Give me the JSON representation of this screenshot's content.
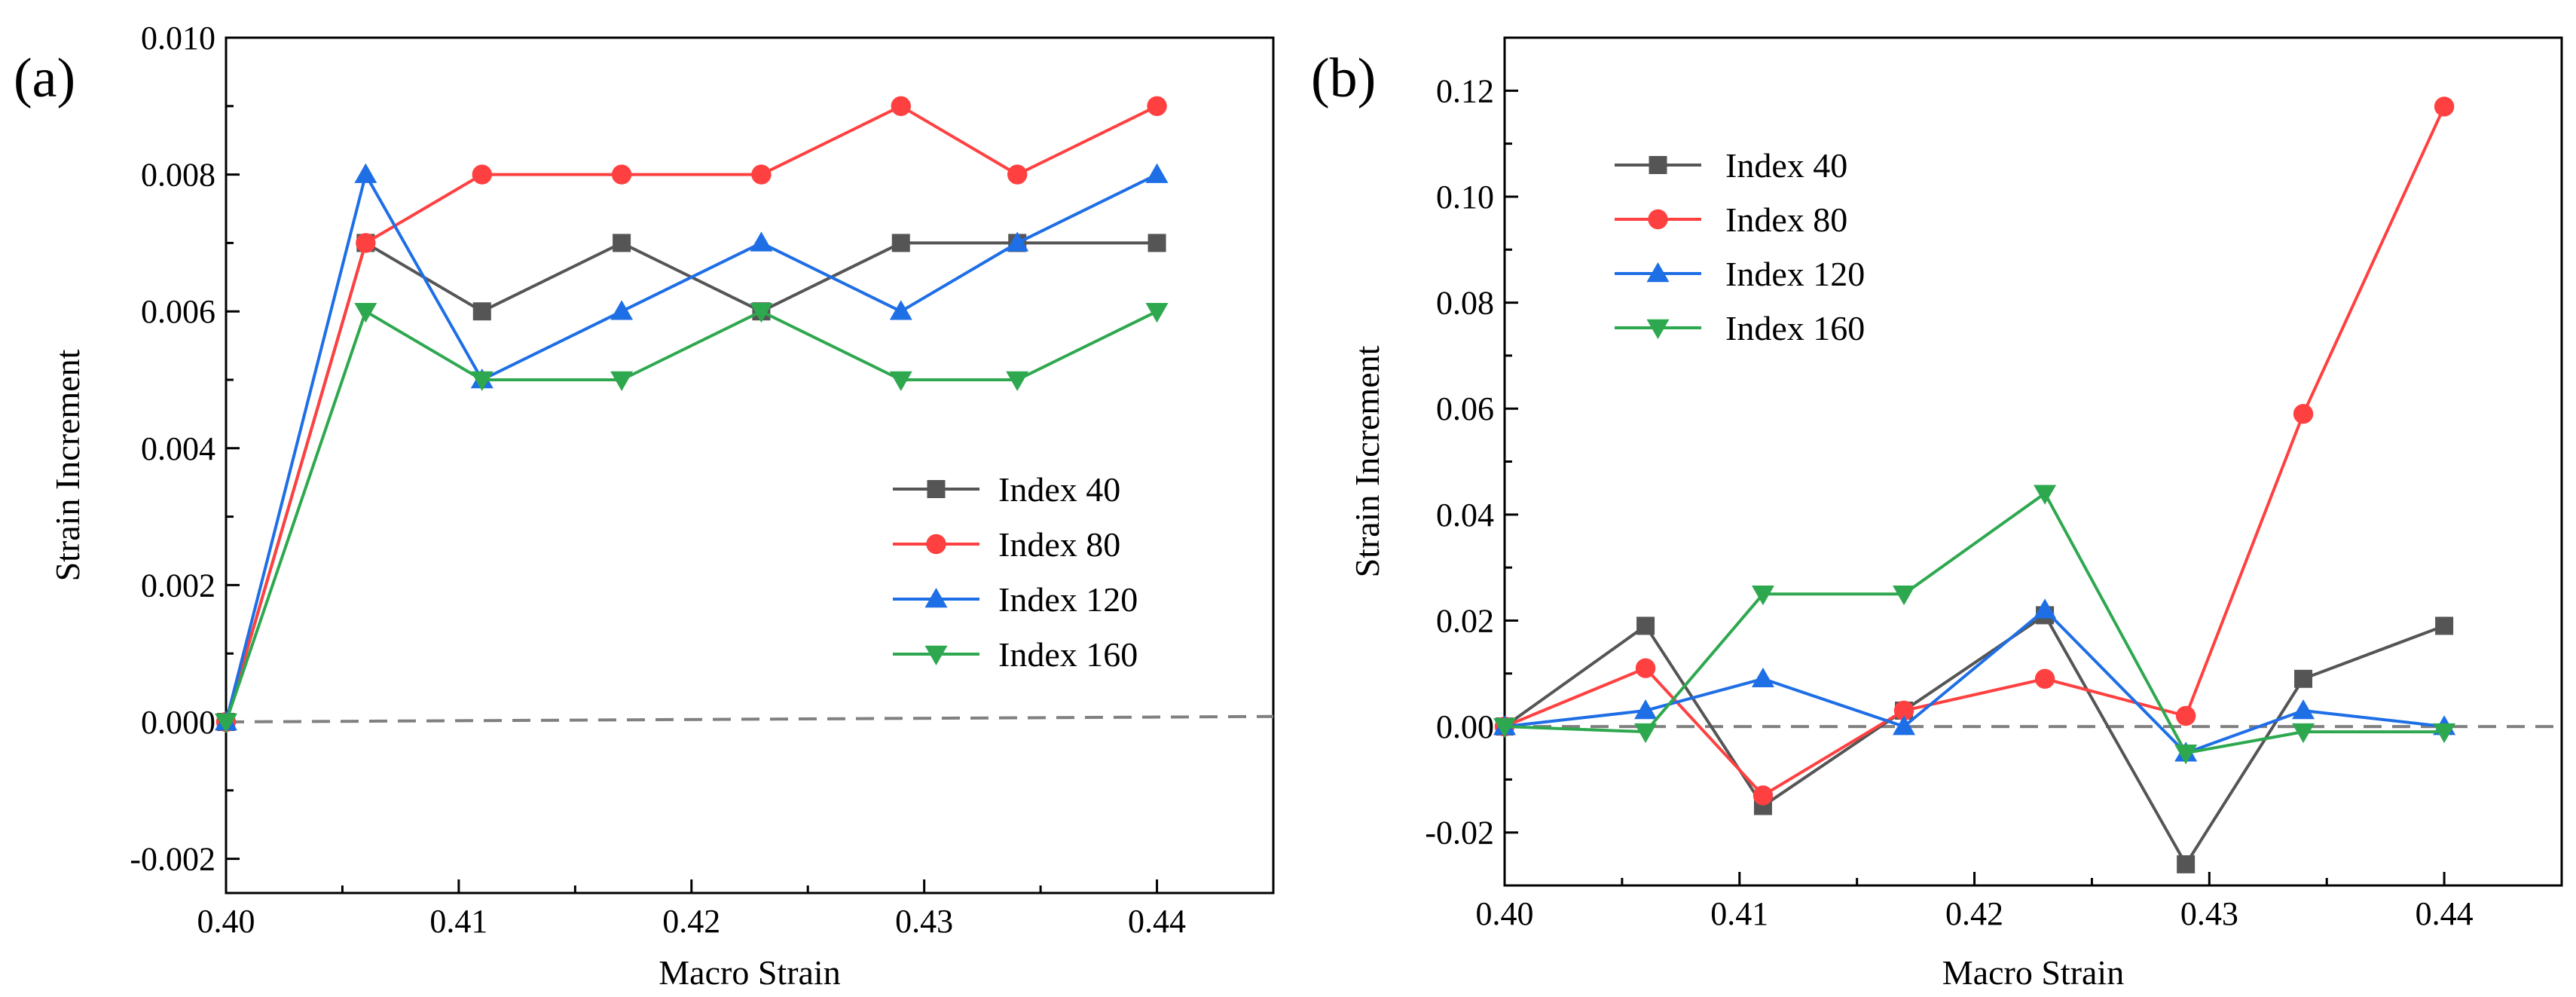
{
  "chart_data": [
    {
      "panel": "(a)",
      "type": "line",
      "xlabel": "Macro Strain",
      "ylabel": "Strain Increment",
      "xlim": [
        0.4,
        0.445
      ],
      "ylim": [
        -0.0025,
        0.01
      ],
      "xticks": [
        0.4,
        0.41,
        0.42,
        0.43,
        0.44
      ],
      "xtick_labels": [
        "0.40",
        "0.41",
        "0.42",
        "0.43",
        "0.44"
      ],
      "yticks": [
        -0.002,
        0.0,
        0.002,
        0.004,
        0.006,
        0.008,
        0.01
      ],
      "ytick_labels": [
        "-0.002",
        "0.000",
        "0.002",
        "0.004",
        "0.006",
        "0.008",
        "0.010"
      ],
      "x": [
        0.4,
        0.406,
        0.411,
        0.417,
        0.423,
        0.429,
        0.434,
        0.44
      ],
      "series": [
        {
          "name": "Index 40",
          "color": "#555555",
          "marker": "square",
          "values": [
            0.0,
            0.007,
            0.006,
            0.007,
            0.006,
            0.007,
            0.007,
            0.007
          ]
        },
        {
          "name": "Index 80",
          "color": "#ff4040",
          "marker": "circle",
          "values": [
            0.0,
            0.007,
            0.008,
            0.008,
            0.008,
            0.009,
            0.008,
            0.009
          ]
        },
        {
          "name": "Index 120",
          "color": "#1e6ee6",
          "marker": "triangle-up",
          "values": [
            0.0,
            0.008,
            0.005,
            0.006,
            0.007,
            0.006,
            0.007,
            0.008
          ]
        },
        {
          "name": "Index 160",
          "color": "#2ea84f",
          "marker": "triangle-down",
          "values": [
            0.0,
            0.006,
            0.005,
            0.005,
            0.006,
            0.005,
            0.005,
            0.006
          ]
        }
      ],
      "reference_line": {
        "style": "dashed",
        "color": "#808080",
        "x": [
          0.4,
          0.445
        ],
        "y": [
          0.0,
          8e-05
        ]
      },
      "legend": {
        "position": "lower-right"
      }
    },
    {
      "panel": "(b)",
      "type": "line",
      "xlabel": "Macro Strain",
      "ylabel": "Strain Increment",
      "xlim": [
        0.4,
        0.445
      ],
      "ylim": [
        -0.03,
        0.13
      ],
      "xticks": [
        0.4,
        0.41,
        0.42,
        0.43,
        0.44
      ],
      "xtick_labels": [
        "0.40",
        "0.41",
        "0.42",
        "0.43",
        "0.44"
      ],
      "yticks": [
        -0.02,
        0.0,
        0.02,
        0.04,
        0.06,
        0.08,
        0.1,
        0.12
      ],
      "ytick_labels": [
        "-0.02",
        "0.00",
        "0.02",
        "0.04",
        "0.06",
        "0.08",
        "0.10",
        "0.12"
      ],
      "x": [
        0.4,
        0.406,
        0.411,
        0.417,
        0.423,
        0.429,
        0.434,
        0.44
      ],
      "series": [
        {
          "name": "Index 40",
          "color": "#555555",
          "marker": "square",
          "values": [
            0.0,
            0.019,
            -0.015,
            0.003,
            0.021,
            -0.026,
            0.009,
            0.019
          ]
        },
        {
          "name": "Index 80",
          "color": "#ff4040",
          "marker": "circle",
          "values": [
            0.0,
            0.011,
            -0.013,
            0.003,
            0.009,
            0.002,
            0.059,
            0.117
          ]
        },
        {
          "name": "Index 120",
          "color": "#1e6ee6",
          "marker": "triangle-up",
          "values": [
            0.0,
            0.003,
            0.009,
            0.0,
            0.022,
            -0.005,
            0.003,
            0.0
          ]
        },
        {
          "name": "Index 160",
          "color": "#2ea84f",
          "marker": "triangle-down",
          "values": [
            0.0,
            -0.001,
            0.025,
            0.025,
            0.044,
            -0.005,
            -0.001,
            -0.001
          ]
        }
      ],
      "reference_line": {
        "style": "dashed",
        "color": "#808080",
        "x": [
          0.4,
          0.445
        ],
        "y": [
          0.0,
          0.0
        ]
      },
      "legend": {
        "position": "top-left"
      }
    }
  ]
}
